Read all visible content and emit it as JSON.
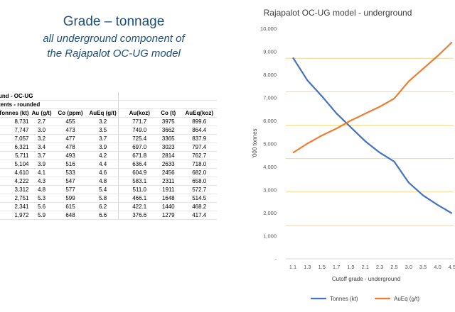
{
  "slide": {
    "title": "Grade – tonnage",
    "subtitle_line1": "all underground component of",
    "subtitle_line2": "the Rajapalot OC-UG model"
  },
  "table": {
    "caption1": "und - OC-UG",
    "caption2": "tents - rounded",
    "headers": [
      "Tonnes (kt)",
      "Au (g/t)",
      "Co (ppm)",
      "AuEq (g/t)",
      "Au(koz)",
      "Co (t)",
      "AuEq(koz)"
    ],
    "rows": [
      [
        "8,731",
        "2.7",
        "455",
        "3.2",
        "771.7",
        "3975",
        "899.6"
      ],
      [
        "7,747",
        "3.0",
        "473",
        "3.5",
        "749.0",
        "3662",
        "864.4"
      ],
      [
        "7,057",
        "3.2",
        "477",
        "3.7",
        "725.4",
        "3365",
        "837.9"
      ],
      [
        "6,321",
        "3.4",
        "478",
        "3.9",
        "697.0",
        "3023",
        "797.4"
      ],
      [
        "5,711",
        "3.7",
        "493",
        "4.2",
        "671.8",
        "2814",
        "762.7"
      ],
      [
        "5,104",
        "3.9",
        "516",
        "4.4",
        "636.4",
        "2633",
        "718.0"
      ],
      [
        "4,610",
        "4.1",
        "533",
        "4.6",
        "604.9",
        "2456",
        "682.0"
      ],
      [
        "4,222",
        "4.3",
        "547",
        "4.8",
        "583.1",
        "2311",
        "658.0"
      ],
      [
        "3,312",
        "4.8",
        "577",
        "5.4",
        "511.0",
        "1911",
        "572.7"
      ],
      [
        "2,751",
        "5.3",
        "599",
        "5.8",
        "466.1",
        "1648",
        "514.5"
      ],
      [
        "2,341",
        "5.6",
        "615",
        "6.2",
        "422.1",
        "1440",
        "468.2"
      ],
      [
        "1,972",
        "5.9",
        "648",
        "6.6",
        "376.6",
        "1279",
        "417.4"
      ]
    ]
  },
  "chart_data": {
    "type": "line",
    "title": "Rajapalot OC-UG model - underground",
    "xlabel": "Cutoff grade - underground",
    "ylabel": "'000 tonnes",
    "categories": [
      "1.1",
      "1.3",
      "1.5",
      "1.7",
      "1.9",
      "2.1",
      "2.3",
      "2.5",
      "3.0",
      "3.5",
      "4.0",
      "4.5"
    ],
    "ylim": [
      0,
      10000
    ],
    "yticks": [
      0,
      1000,
      2000,
      3000,
      4000,
      5000,
      6000,
      7000,
      8000,
      9000,
      10000
    ],
    "ytick_labels": [
      "-",
      "1,000",
      "2,000",
      "3,000",
      "4,000",
      "5,000",
      "6,000",
      "7,000",
      "8,000",
      "9,000",
      "10,000"
    ],
    "gridlines": [
      1450,
      2900,
      4350,
      5800,
      7250,
      8700
    ],
    "series": [
      {
        "name": "Tonnes (kt)",
        "color": "#4472c4",
        "values": [
          8731,
          7747,
          7057,
          6321,
          5711,
          5104,
          4610,
          4222,
          3312,
          2751,
          2341,
          1972
        ]
      },
      {
        "name": "AuEq (g/t)",
        "color": "#ed7d31",
        "values": [
          4600,
          5000,
          5350,
          5650,
          6000,
          6300,
          6600,
          6950,
          7700,
          8250,
          8800,
          9400
        ]
      }
    ],
    "legend_position": "bottom"
  }
}
